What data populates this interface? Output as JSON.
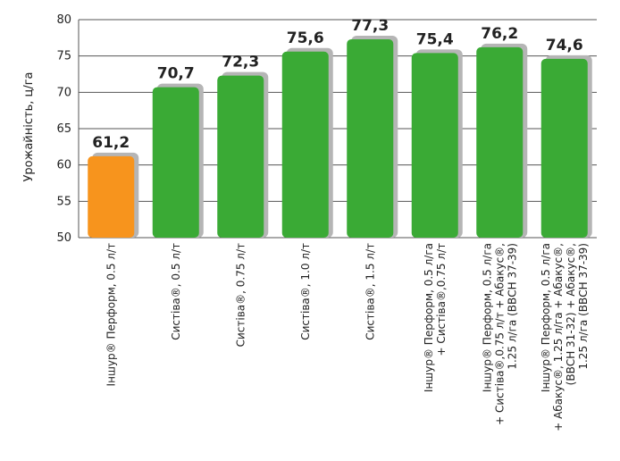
{
  "chart_data": {
    "type": "bar",
    "title": "",
    "xlabel": "",
    "ylabel": "Урожайність, ц/га",
    "ylim": [
      50,
      80
    ],
    "yticks": [
      50,
      55,
      60,
      65,
      70,
      75,
      80
    ],
    "grid": true,
    "legend": "none",
    "categories": [
      [
        "Іншур® Перформ, 0.5 л/т"
      ],
      [
        "Систіва®, 0.5 л/т"
      ],
      [
        "Систіва®, 0.75 л/т"
      ],
      [
        "Систіва®, 1.0 л/т"
      ],
      [
        "Систіва®, 1.5 л/т"
      ],
      [
        "Іншур® Перформ, 0.5 л/га",
        "+ Систіва®,0.75 л/т"
      ],
      [
        "Іншур® Перформ, 0.5 л/га",
        "+ Систіва®,0.75 л/т + Абакус®,",
        "1.25 л/га (ВВСН 37-39)"
      ],
      [
        "Іншур® Перформ, 0.5 л/га",
        "+ Абакус®, 1.25 л/га + Абакус®,",
        "(ВВСН 31-32) + Абакус®,",
        "1.25 л/га (ВВСН 37-39)"
      ]
    ],
    "values": [
      61.2,
      70.7,
      72.3,
      75.6,
      77.3,
      75.4,
      76.2,
      74.6
    ],
    "value_labels": [
      "61,2",
      "70,7",
      "72,3",
      "75,6",
      "77,3",
      "75,4",
      "76,2",
      "74,6"
    ],
    "colors": [
      "#f7941d",
      "#3aaa35",
      "#3aaa35",
      "#3aaa35",
      "#3aaa35",
      "#3aaa35",
      "#3aaa35",
      "#3aaa35"
    ],
    "shadow_color": "#b5b5b5",
    "grid_color": "#555555"
  }
}
